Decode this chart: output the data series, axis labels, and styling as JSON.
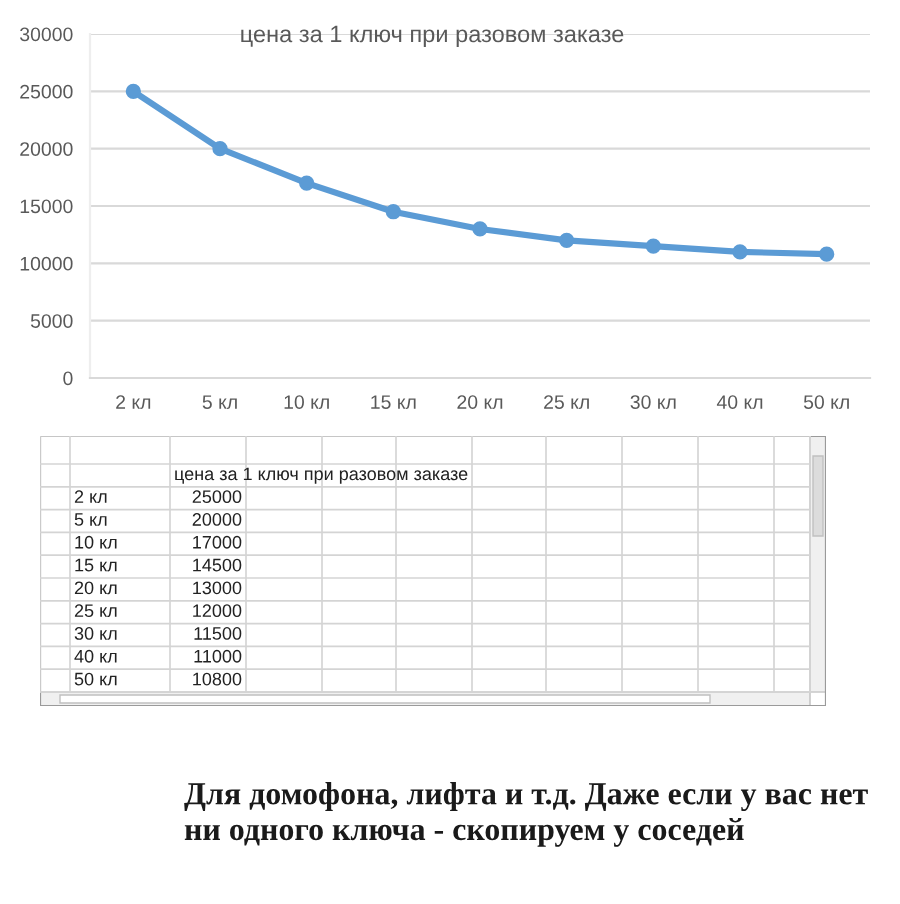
{
  "chart_data": [
    {
      "type": "line",
      "title": "цена за 1 ключ при разовом заказе",
      "categories": [
        "2 кл",
        "5 кл",
        "10 кл",
        "15 кл",
        "20 кл",
        "25 кл",
        "30 кл",
        "40 кл",
        "50 кл"
      ],
      "values": [
        25000,
        20000,
        17000,
        14500,
        13000,
        12000,
        11500,
        11000,
        10800
      ],
      "color": "#5b9bd5",
      "marker": "circle",
      "ylim": [
        0,
        30000
      ],
      "yticks": [
        0,
        5000,
        10000,
        15000,
        20000,
        25000,
        30000
      ],
      "grid": "y"
    },
    {
      "type": "other",
      "title": "цена за 1 ключ при разовом заказе",
      "categories": [
        "2 кл",
        "5 кл",
        "10 кл",
        "15 кл",
        "20 кл",
        "25 кл",
        "30 кл",
        "40 кл",
        "50 кл"
      ],
      "values": [
        25000,
        20000,
        17000,
        14500,
        13000,
        12000,
        11500,
        11000,
        10800
      ],
      "data_labels": true,
      "annotations": [
        "Для домофона, лифта и т.д. Даже если у вас нет ни одного ключа - скопируем у соседей"
      ]
    }
  ]
}
